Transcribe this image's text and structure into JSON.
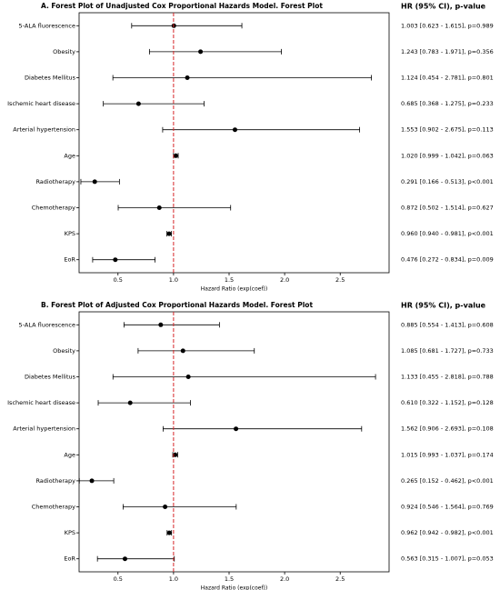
{
  "chart_data": [
    {
      "type": "forest",
      "title": "A. Forest Plot of Unadjusted Cox Proportional Hazards Model. Forest Plot",
      "column_header": "HR (95% CI), p-value",
      "x_label": "Hazard Ratio (exp(coef))",
      "categories": [
        "5-ALA fluorescence",
        "Obesity",
        "Diabetes Mellitus",
        "Ischemic heart disease",
        "Arterial hypertension",
        "Age",
        "Radiotherapy",
        "Chemotherapy",
        "KPS",
        "EoR"
      ],
      "values": [
        1.003,
        1.243,
        1.124,
        0.685,
        1.553,
        1.02,
        0.291,
        0.872,
        0.96,
        0.476
      ],
      "lower": [
        0.623,
        0.783,
        0.454,
        0.368,
        0.902,
        0.999,
        0.166,
        0.502,
        0.94,
        0.272
      ],
      "upper": [
        1.615,
        1.971,
        2.781,
        1.275,
        2.675,
        1.042,
        0.513,
        1.514,
        0.981,
        0.834
      ],
      "annotations": [
        "1.003 [0.623 - 1.615], p=0.989",
        "1.243 [0.783 - 1.971], p=0.356",
        "1.124 [0.454 - 2.781], p=0.801",
        "0.685 [0.368 - 1.275], p=0.233",
        "1.553 [0.902 - 2.675], p=0.113",
        "1.020 [0.999 - 1.042], p=0.063",
        "0.291 [0.166 - 0.513], p<0.001",
        "0.872 [0.502 - 1.514], p=0.627",
        "0.960 [0.940 - 0.981], p<0.001",
        "0.476 [0.272 - 0.834], p=0.009"
      ],
      "reference": 1,
      "reference_color": "#d62728",
      "color": "#000000",
      "xlim": [
        0.15,
        2.94
      ],
      "xticks": [
        0.5,
        {
          "value": 1,
          "label": "1.0"
        },
        1.5,
        {
          "value": 2,
          "label": "2.0"
        },
        2.5
      ]
    },
    {
      "type": "forest",
      "title": "B. Forest Plot of Adjusted Cox Proportional Hazards Model. Forest Plot",
      "column_header": "HR (95% CI), p-value",
      "x_label": "Hazard Ratio (exp(coef))",
      "categories": [
        "5-ALA fluorescence",
        "Obesity",
        "Diabetes Mellitus",
        "Ischemic heart disease",
        "Arterial hypertension",
        "Age",
        "Radiotherapy",
        "Chemotherapy",
        "KPS",
        "EoR"
      ],
      "values": [
        0.885,
        1.085,
        1.133,
        0.61,
        1.562,
        1.015,
        0.265,
        0.924,
        0.962,
        0.563
      ],
      "lower": [
        0.554,
        0.681,
        0.455,
        0.322,
        0.906,
        0.993,
        0.152,
        0.546,
        0.942,
        0.315
      ],
      "upper": [
        1.413,
        1.727,
        2.818,
        1.152,
        2.693,
        1.037,
        0.462,
        1.564,
        0.982,
        1.007
      ],
      "annotations": [
        "0.885 [0.554 - 1.413], p=0.608",
        "1.085 [0.681 - 1.727], p=0.733",
        "1.133 [0.455 - 2.818], p=0.788",
        "0.610 [0.322 - 1.152], p=0.128",
        "1.562 [0.906 - 2.693], p=0.108",
        "1.015 [0.993 - 1.037], p=0.174",
        "0.265 [0.152 - 0.462], p<0.001",
        "0.924 [0.546 - 1.564], p=0.769",
        "0.962 [0.942 - 0.982], p<0.001",
        "0.563 [0.315 - 1.007], p=0.053"
      ],
      "reference": 1,
      "reference_color": "#d62728",
      "color": "#000000",
      "xlim": [
        0.15,
        2.94
      ],
      "xticks": [
        0.5,
        {
          "value": 1,
          "label": "1.0"
        },
        1.5,
        {
          "value": 2,
          "label": "2.0"
        },
        2.5
      ]
    }
  ]
}
